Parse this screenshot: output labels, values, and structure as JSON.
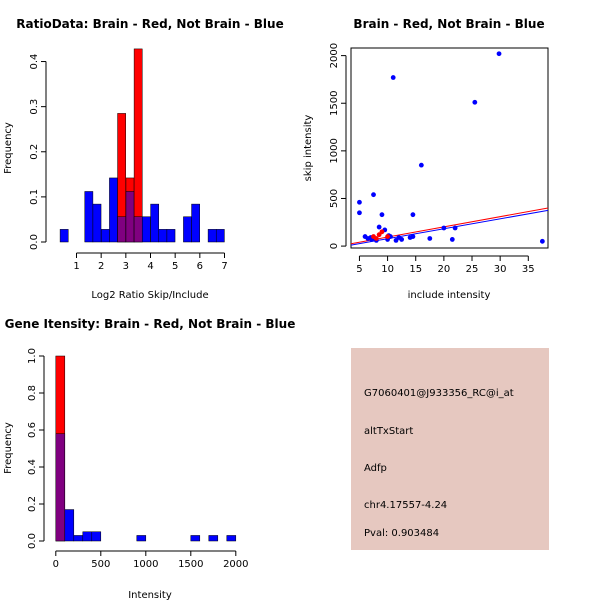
{
  "colors": {
    "brain": "#ff0000",
    "not_brain": "#0000ff",
    "overlap": "#800080",
    "info_bg": "#e6c8c0",
    "pval": "#8b0000"
  },
  "chart_data": [
    {
      "id": "ratio",
      "type": "histogram",
      "title": "RatioData: Brain - Red, Not Brain - Blue",
      "xlabel": "Log2 Ratio Skip/Include",
      "ylabel": "Frequency",
      "xlim": [
        0.25,
        7.75
      ],
      "ylim": [
        0,
        0.43
      ],
      "xticks": [
        1,
        2,
        3,
        4,
        5,
        6,
        7
      ],
      "yticks": [
        0.0,
        0.1,
        0.2,
        0.3,
        0.4
      ],
      "bin_width": 0.33,
      "bins": [
        0.5,
        1.5,
        1.83,
        2.17,
        2.5,
        2.83,
        3.17,
        3.5,
        3.83,
        4.17,
        4.5,
        4.83,
        5.5,
        5.83,
        6.17,
        6.5,
        6.83,
        7.17
      ],
      "series": [
        {
          "name": "Not Brain",
          "color": "blue",
          "values": [
            0.028,
            0.112,
            0.084,
            0.028,
            0.142,
            0.056,
            0.112,
            0.056,
            0.056,
            0.084,
            0.028,
            0.028,
            0.056,
            0.084,
            0,
            0.028,
            0.028,
            0
          ]
        },
        {
          "name": "Brain",
          "color": "red",
          "values": [
            0,
            0,
            0,
            0,
            0,
            0.285,
            0.142,
            0.428,
            0,
            0,
            0,
            0,
            0,
            0,
            0,
            0,
            0,
            0
          ]
        }
      ]
    },
    {
      "id": "scatter",
      "type": "scatter",
      "title": "Brain - Red, Not Brain - Blue",
      "xlabel": "include intensity",
      "ylabel": "skip intensity",
      "xlim": [
        3.5,
        38.5
      ],
      "ylim": [
        -20,
        2080
      ],
      "xticks": [
        5,
        10,
        15,
        20,
        25,
        30,
        35
      ],
      "yticks": [
        0,
        500,
        1000,
        1500,
        2000
      ],
      "series": [
        {
          "name": "Not Brain",
          "color": "blue",
          "x": [
            5,
            5,
            6,
            6.5,
            7,
            7.2,
            7.5,
            8,
            8.5,
            9,
            9.5,
            10,
            10.2,
            10.5,
            11,
            11.5,
            12,
            12.5,
            14,
            14.5,
            14.5,
            16,
            17.5,
            20,
            21.5,
            22,
            25.5,
            29.8,
            37.5
          ],
          "y": [
            460,
            350,
            100,
            80,
            90,
            70,
            540,
            60,
            200,
            330,
            170,
            70,
            110,
            100,
            1770,
            60,
            90,
            70,
            90,
            330,
            100,
            850,
            80,
            190,
            70,
            190,
            1510,
            2020,
            50
          ]
        },
        {
          "name": "Brain",
          "color": "red",
          "x": [
            7.5,
            8,
            8.5,
            9,
            10
          ],
          "y": [
            100,
            80,
            120,
            150,
            100
          ]
        }
      ],
      "lines": [
        {
          "color": "red",
          "x": [
            3.5,
            38.5
          ],
          "y": [
            25,
            400
          ]
        },
        {
          "color": "blue",
          "x": [
            3.5,
            38.5
          ],
          "y": [
            10,
            375
          ]
        }
      ]
    },
    {
      "id": "intensity",
      "type": "histogram",
      "title": "Gene Itensity: Brain - Red, Not Brain - Blue",
      "xlabel": "Intensity",
      "ylabel": "Frequency",
      "xlim": [
        -20,
        2080
      ],
      "ylim": [
        0,
        1.0
      ],
      "xticks": [
        0,
        500,
        1000,
        1500,
        2000
      ],
      "yticks": [
        0.0,
        0.2,
        0.4,
        0.6,
        0.8,
        1.0
      ],
      "bin_width": 100,
      "bins": [
        50,
        150,
        250,
        350,
        450,
        550,
        650,
        750,
        850,
        950,
        1050,
        1150,
        1250,
        1350,
        1450,
        1550,
        1650,
        1750,
        1850,
        1950,
        2050
      ],
      "series": [
        {
          "name": "Not Brain",
          "color": "blue",
          "values": [
            0.58,
            0.17,
            0.03,
            0.05,
            0.05,
            0,
            0,
            0,
            0,
            0.03,
            0,
            0,
            0,
            0,
            0,
            0.03,
            0,
            0.03,
            0,
            0.03,
            0
          ]
        },
        {
          "name": "Brain",
          "color": "red",
          "values": [
            1.0,
            0,
            0,
            0,
            0,
            0,
            0,
            0,
            0,
            0,
            0,
            0,
            0,
            0,
            0,
            0,
            0,
            0,
            0,
            0,
            0
          ]
        }
      ]
    }
  ],
  "info": {
    "probe": "G7060401@J933356_RC@i_at",
    "event": "altTxStart",
    "gene": "Adfp",
    "location": "chr4.17557-4.24",
    "pval": "Pval: 0.903484"
  }
}
